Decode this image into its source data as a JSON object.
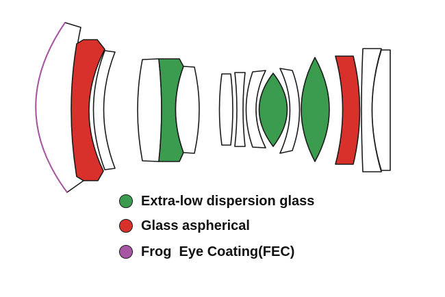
{
  "colors": {
    "ed_glass": "#3b9b4f",
    "aspherical": "#d8312b",
    "fec_coating": "#a856a3",
    "outline": "#1a1a1a"
  },
  "legend": {
    "items": [
      {
        "label": "Extra-low dispersion glass",
        "color": "#3b9b4f"
      },
      {
        "label": "Glass aspherical",
        "color": "#d8312b"
      },
      {
        "label": "Frog  Eye Coating(FEC)",
        "color": "#a856a3"
      }
    ]
  }
}
